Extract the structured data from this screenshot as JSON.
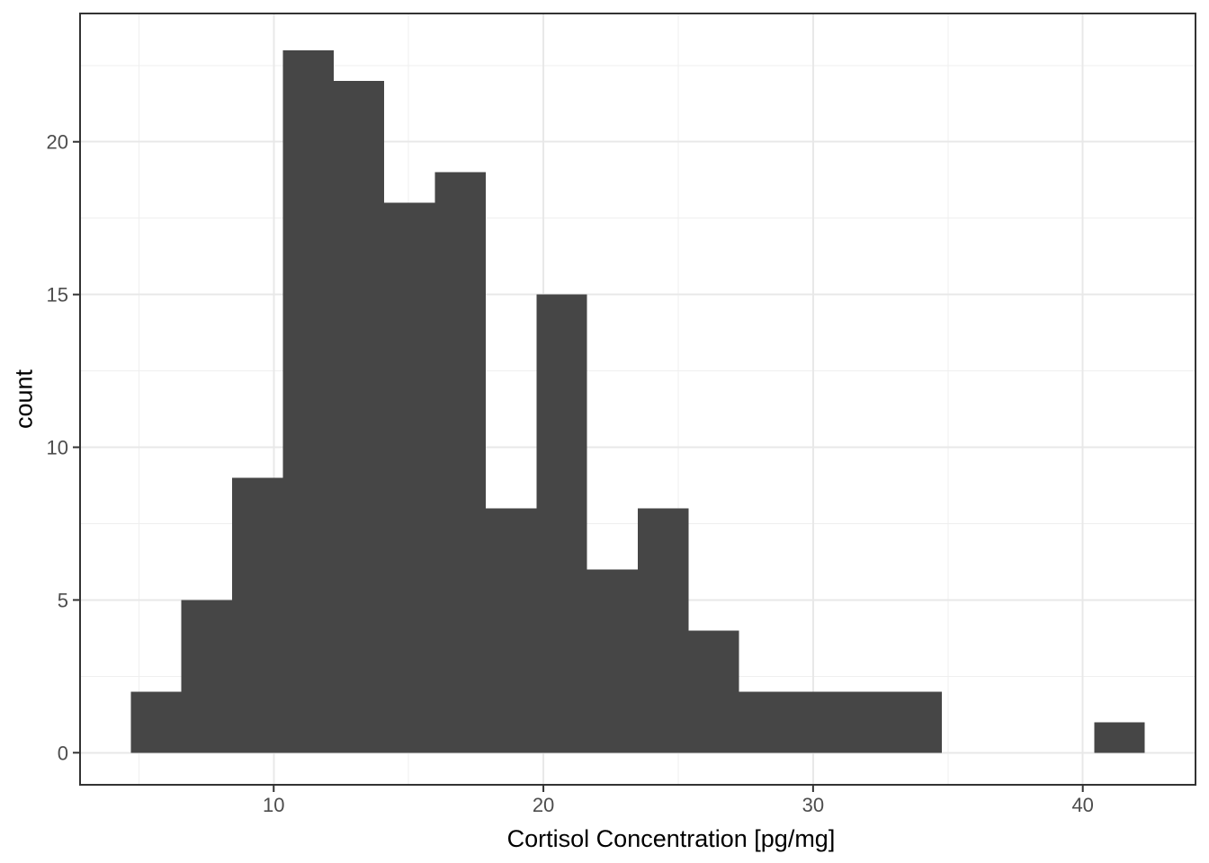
{
  "figure": {
    "x_title": "Cortisol Concentration [pg/mg]",
    "y_title": "count"
  },
  "chart_data": {
    "type": "bar",
    "subtype": "histogram",
    "title": "",
    "xlabel": "Cortisol Concentration [pg/mg]",
    "ylabel": "count",
    "bin_start": 4.7,
    "bin_width": 1.88,
    "bin_edges": [
      4.7,
      6.58,
      8.46,
      10.34,
      12.22,
      14.1,
      15.98,
      17.86,
      19.74,
      21.62,
      23.5,
      25.38,
      27.26,
      29.14,
      31.02,
      32.9,
      34.78,
      36.66,
      38.54,
      40.42,
      42.3
    ],
    "counts": [
      2,
      5,
      9,
      23,
      22,
      18,
      19,
      8,
      15,
      6,
      8,
      4,
      2,
      2,
      2,
      2,
      0,
      0,
      0,
      1
    ],
    "x_ticks": [
      10,
      20,
      30,
      40
    ],
    "x_minor_ticks": [
      5,
      15,
      25,
      35
    ],
    "y_ticks": [
      0,
      5,
      10,
      15,
      20
    ],
    "y_minor_ticks": [
      2.5,
      7.5,
      12.5,
      17.5,
      22.5
    ],
    "xlim": [
      2.82,
      44.18
    ],
    "ylim": [
      -1.05,
      24.2
    ],
    "grid": true,
    "legend": "none",
    "colors": {
      "bar_fill": "#464646",
      "grid_major": "#e8e8e8",
      "grid_minor": "#efefef",
      "panel_border": "#333333",
      "tick_mark": "#333333",
      "tick_text": "#4d4d4d",
      "title_text": "#000000",
      "panel_background": "#ffffff"
    }
  }
}
